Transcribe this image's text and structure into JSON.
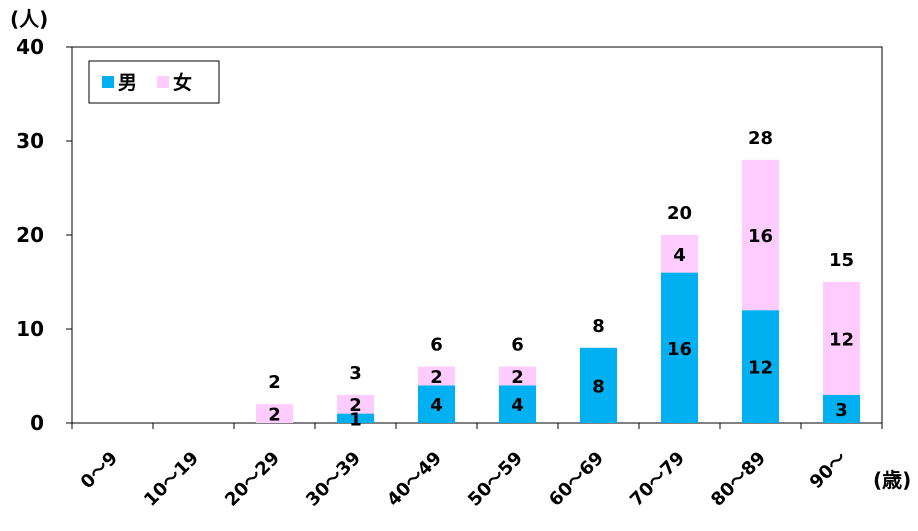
{
  "chart_data": {
    "type": "bar",
    "stacked": true,
    "title": "",
    "ylabel": "(人)",
    "xlabel": "(歳)",
    "ylim": [
      0,
      40
    ],
    "yticks": [
      "0",
      "10",
      "20",
      "30",
      "40"
    ],
    "grid": false,
    "legend_position": "top-left",
    "categories": [
      "0～9",
      "10～19",
      "20～29",
      "30～39",
      "40～49",
      "50～59",
      "60～69",
      "70～79",
      "80～89",
      "90～"
    ],
    "series": [
      {
        "name": "男",
        "color": "#00b0f0",
        "values": [
          0,
          0,
          0,
          1,
          4,
          4,
          8,
          16,
          12,
          3
        ]
      },
      {
        "name": "女",
        "color": "#ffccff",
        "values": [
          0,
          0,
          2,
          2,
          2,
          2,
          0,
          4,
          16,
          12
        ]
      }
    ],
    "totals": [
      null,
      null,
      2,
      3,
      6,
      6,
      8,
      20,
      28,
      15
    ]
  }
}
